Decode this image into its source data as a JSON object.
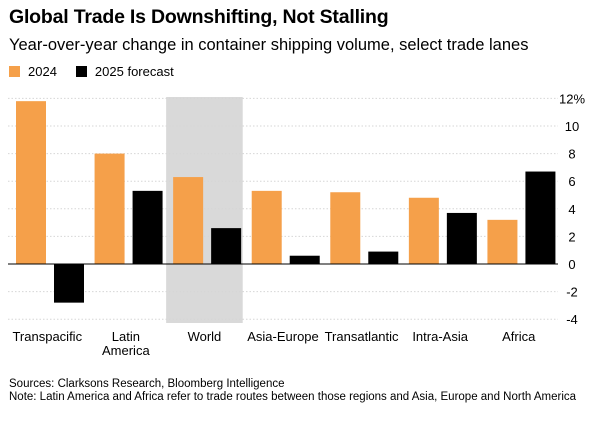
{
  "chart_data": {
    "type": "bar",
    "title": "Global Trade Is Downshifting, Not Stalling",
    "subtitle": "Year-over-year change in container shipping volume, select trade lanes",
    "categories": [
      {
        "line1": "Transpacific",
        "line2": ""
      },
      {
        "line1": "Latin",
        "line2": "America"
      },
      {
        "line1": "World",
        "line2": ""
      },
      {
        "line1": "Asia-Europe",
        "line2": ""
      },
      {
        "line1": "Transatlantic",
        "line2": ""
      },
      {
        "line1": "Intra-Asia",
        "line2": ""
      },
      {
        "line1": "Africa",
        "line2": ""
      }
    ],
    "series": [
      {
        "name": "2024",
        "color": "#F5A04A",
        "values": [
          11.8,
          8.0,
          6.3,
          5.3,
          5.2,
          4.8,
          3.2
        ]
      },
      {
        "name": "2025 forecast",
        "color": "#000000",
        "values": [
          -2.8,
          5.3,
          2.6,
          0.6,
          0.9,
          3.7,
          6.7
        ]
      }
    ],
    "highlight_category": "World",
    "highlight_color": "#D9D9D9",
    "yticks": [
      "12%",
      "10",
      "8",
      "6",
      "4",
      "2",
      "0",
      "-2",
      "-4"
    ],
    "ytick_values": [
      12,
      10,
      8,
      6,
      4,
      2,
      0,
      -2,
      -4
    ],
    "ylim": [
      -4.5,
      12
    ],
    "grid": true,
    "legend_position": "top-left"
  },
  "footer": {
    "sources": "Sources: Clarksons Research, Bloomberg Intelligence",
    "note": "Note: Latin America and Africa refer to trade routes between those regions and Asia, Europe and North America"
  }
}
